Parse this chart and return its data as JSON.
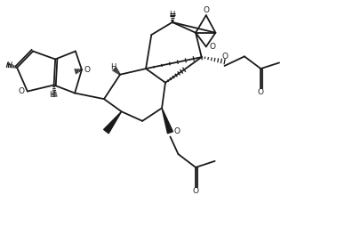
{
  "bg_color": "#ffffff",
  "line_color": "#1a1a1a",
  "lw": 1.3,
  "fw": 3.97,
  "fh": 2.56,
  "dpi": 100,
  "xlim": [
    0,
    10
  ],
  "ylim": [
    0,
    6.5
  ]
}
